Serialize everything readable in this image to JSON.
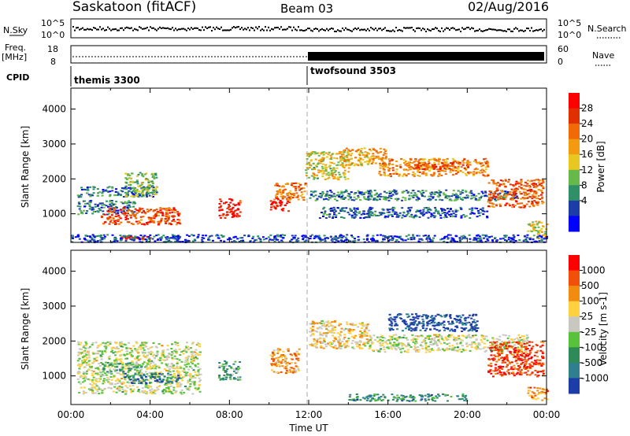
{
  "header": {
    "station": "Saskatoon (fitACF)",
    "beam": "Beam 03",
    "date": "02/Aug/2016"
  },
  "top_panels": {
    "nsky_label": "N.Sky",
    "nsky_ticks": [
      "10^5",
      "10^0"
    ],
    "nsearch_label": "N.Search",
    "freq_label_1": "Freq.",
    "freq_label_2": "[MHz]",
    "freq_ticks": [
      "18",
      "8"
    ],
    "nave_label": "Nave",
    "nave_ticks": [
      "60",
      "0"
    ],
    "cpid_label": "CPID",
    "cpid_segments": [
      {
        "name": "themis 3300",
        "start_hour": 0,
        "end_hour": 12
      },
      {
        "name": "twofsound 3503",
        "start_hour": 12,
        "end_hour": 24
      }
    ]
  },
  "chart_data": [
    {
      "type": "heatmap",
      "name": "power-panel",
      "ylabel": "Slant Range [km]",
      "ylim": [
        180,
        4600
      ],
      "yticks": [
        1000,
        2000,
        3000,
        4000
      ],
      "xlim": [
        0,
        24
      ],
      "colorbar": {
        "label": "Power [dB]",
        "ticks": [
          "4",
          "8",
          "12",
          "16",
          "20",
          "24",
          "28"
        ],
        "colors": [
          "#0000ff",
          "#1c3ca8",
          "#2f8f67",
          "#66b94a",
          "#e8c820",
          "#f29a10",
          "#f26a08",
          "#e03000",
          "#ff0000"
        ]
      },
      "blobs": [
        {
          "t0": 0.3,
          "t1": 4.3,
          "r0": 1500,
          "r1": 1800,
          "level": 0.25
        },
        {
          "t0": 2.7,
          "t1": 4.3,
          "r0": 1500,
          "r1": 2200,
          "level": 0.4
        },
        {
          "t0": 0.3,
          "t1": 3.2,
          "r0": 1000,
          "r1": 1400,
          "level": 0.25
        },
        {
          "t0": 1.5,
          "t1": 5.5,
          "r0": 700,
          "r1": 1200,
          "level": 0.8
        },
        {
          "t0": 2.5,
          "t1": 4.0,
          "r0": 280,
          "r1": 380,
          "level": 0.85
        },
        {
          "t0": 7.4,
          "t1": 8.5,
          "r0": 900,
          "r1": 1450,
          "level": 0.9
        },
        {
          "t0": 10.0,
          "t1": 11.0,
          "r0": 1100,
          "r1": 1500,
          "level": 0.95
        },
        {
          "t0": 10.2,
          "t1": 11.8,
          "r0": 1400,
          "r1": 1900,
          "level": 0.7
        },
        {
          "t0": 11.8,
          "t1": 14.0,
          "r0": 2000,
          "r1": 2800,
          "level": 0.5
        },
        {
          "t0": 13.5,
          "t1": 16.0,
          "r0": 2400,
          "r1": 2900,
          "level": 0.6
        },
        {
          "t0": 15.5,
          "t1": 21.0,
          "r0": 2100,
          "r1": 2600,
          "level": 0.65
        },
        {
          "t0": 17.0,
          "t1": 20.0,
          "r0": 2300,
          "r1": 2500,
          "level": 0.8
        },
        {
          "t0": 12.0,
          "t1": 22.5,
          "r0": 1400,
          "r1": 1700,
          "level": 0.25
        },
        {
          "t0": 12.5,
          "t1": 21.0,
          "r0": 900,
          "r1": 1200,
          "level": 0.2
        },
        {
          "t0": 21.0,
          "t1": 23.8,
          "r0": 1200,
          "r1": 2000,
          "level": 0.75
        },
        {
          "t0": 23.0,
          "t1": 24.0,
          "r0": 300,
          "r1": 800,
          "level": 0.5
        },
        {
          "t0": 0.0,
          "t1": 24.0,
          "r0": 200,
          "r1": 420,
          "level": 0.15
        }
      ]
    },
    {
      "type": "heatmap",
      "name": "velocity-panel",
      "ylabel": "Slant Range [km]",
      "xlabel": "Time UT",
      "ylim": [
        180,
        4600
      ],
      "yticks": [
        1000,
        2000,
        3000,
        4000
      ],
      "xlim": [
        0,
        24
      ],
      "xticks": [
        "00:00",
        "04:00",
        "08:00",
        "12:00",
        "16:00",
        "20:00",
        "00:00"
      ],
      "colorbar": {
        "label": "Velocity [m s-1]",
        "ticks": [
          "1000",
          "500",
          "100",
          "25",
          "-25",
          "-100",
          "-500",
          "-1000"
        ],
        "colors": [
          "#1c3ca8",
          "#2f7f8f",
          "#2e8b57",
          "#58c23a",
          "#c8c8c0",
          "#ffd040",
          "#f28c10",
          "#f25008",
          "#ff0000"
        ]
      },
      "blobs": [
        {
          "t0": 0.3,
          "t1": 6.5,
          "r0": 500,
          "r1": 2000,
          "level": 0.5
        },
        {
          "t0": 1.5,
          "t1": 3.5,
          "r0": 1100,
          "r1": 1400,
          "level": 0.35
        },
        {
          "t0": 2.5,
          "t1": 5.5,
          "r0": 800,
          "r1": 1100,
          "level": 0.2
        },
        {
          "t0": 7.4,
          "t1": 8.5,
          "r0": 900,
          "r1": 1450,
          "level": 0.3
        },
        {
          "t0": 10.0,
          "t1": 11.5,
          "r0": 1100,
          "r1": 1800,
          "level": 0.7
        },
        {
          "t0": 12.0,
          "t1": 15.0,
          "r0": 1800,
          "r1": 2600,
          "level": 0.6
        },
        {
          "t0": 16.0,
          "t1": 20.5,
          "r0": 2300,
          "r1": 2800,
          "level": 0.05
        },
        {
          "t0": 15.0,
          "t1": 23.0,
          "r0": 1700,
          "r1": 2200,
          "level": 0.5
        },
        {
          "t0": 21.0,
          "t1": 23.8,
          "r0": 1000,
          "r1": 2000,
          "level": 0.9
        },
        {
          "t0": 14.0,
          "t1": 20.0,
          "r0": 300,
          "r1": 500,
          "level": 0.25
        },
        {
          "t0": 23.0,
          "t1": 24.0,
          "r0": 300,
          "r1": 700,
          "level": 0.75
        }
      ]
    }
  ]
}
